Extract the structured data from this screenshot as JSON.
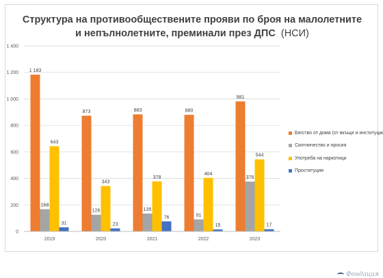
{
  "title": {
    "line1": "Структура на противообществените прояви по броя на малолетните",
    "line2": "и непълнолетните, преминали през ДПС",
    "line2_suffix": "(НСИ)"
  },
  "colors": {
    "series": [
      "#ED7D31",
      "#A5A5A5",
      "#FFC000",
      "#4472C4"
    ],
    "grid": "#d9d9d9",
    "axis_text": "#595959",
    "label_text": "#404040"
  },
  "chart_data": {
    "type": "bar",
    "categories": [
      "2019",
      "2020",
      "2021",
      "2022",
      "2023"
    ],
    "series": [
      {
        "name": "Бягство от дома (от вкъщи и институции)",
        "values": [
          1183,
          873,
          883,
          880,
          981
        ],
        "labels": [
          "1 183",
          "873",
          "883",
          "880",
          "981"
        ]
      },
      {
        "name": "Скитничество и просия",
        "values": [
          168,
          126,
          135,
          91,
          376
        ],
        "labels": [
          "168",
          "126",
          "135",
          "91",
          "376"
        ]
      },
      {
        "name": "Употреба на наркотици",
        "values": [
          643,
          343,
          378,
          404,
          544
        ],
        "labels": [
          "643",
          "343",
          "378",
          "404",
          "544"
        ]
      },
      {
        "name": "Проституция",
        "values": [
          31,
          23,
          76,
          15,
          17
        ],
        "labels": [
          "31",
          "23",
          "76",
          "15",
          "17"
        ]
      }
    ],
    "ylim": [
      0,
      1400
    ],
    "yticks": [
      0,
      200,
      400,
      600,
      800,
      1000,
      1200,
      1400
    ],
    "ytick_labels": [
      "0",
      "200",
      "400",
      "600",
      "800",
      "1 000",
      "1 200",
      "1 400"
    ],
    "grid": true,
    "legend": "right"
  },
  "footer": {
    "logo_text": "Фондация"
  }
}
